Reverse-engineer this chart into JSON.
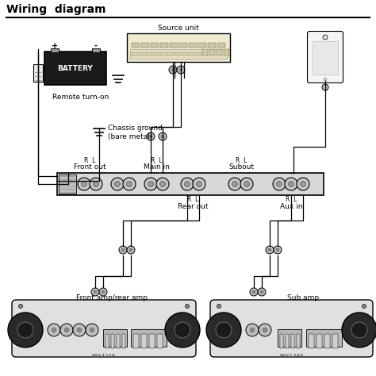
{
  "title": "Wiring  diagram",
  "bg_color": "#ffffff",
  "text_color": "#000000",
  "title_fontsize": 10,
  "body_fontsize": 6.5,
  "small_fontsize": 5,
  "labels": {
    "source_unit": "Source unit",
    "battery": "BATTERY",
    "remote": "Remote turn-on",
    "chassis": "Chassis ground\n(bare metal)",
    "front_out": "Front out",
    "main_in": "Main in",
    "subout": "Subout",
    "rear_out": "Rear out",
    "aux_in": "Aux in",
    "front_amp": "Front amp/rear amp",
    "sub_amp": "Sub amp",
    "apx4248": "APX4248",
    "apx1380": "APX1380"
  }
}
